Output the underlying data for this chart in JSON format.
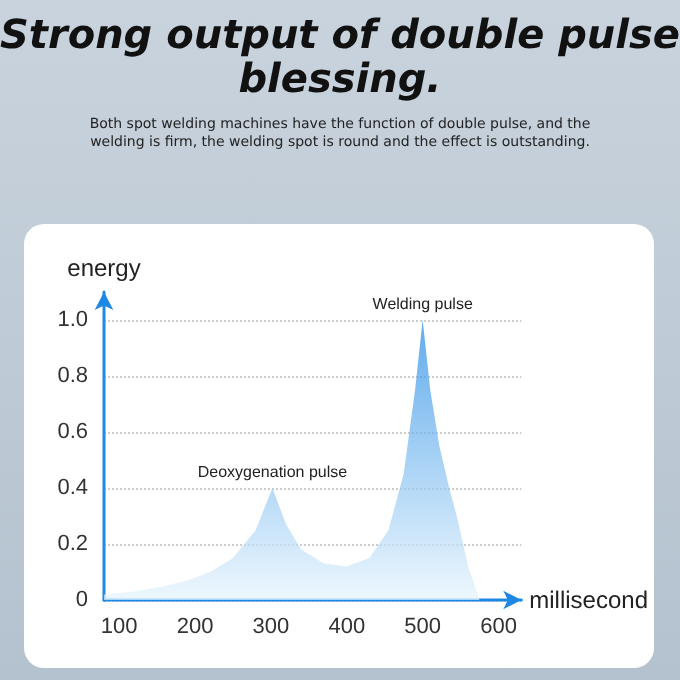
{
  "chart_data": {
    "type": "area",
    "title": "Strong output of double pulse blessing.",
    "subtitle": "Both spot welding machines have the function of double pulse, and the welding is firm, the welding spot is round and the effect is outstanding.",
    "xlabel": "millisecond",
    "ylabel": "energy",
    "x": [
      80,
      120,
      160,
      190,
      220,
      250,
      280,
      302,
      320,
      340,
      370,
      400,
      430,
      455,
      475,
      490,
      500,
      510,
      522,
      535,
      545,
      560,
      575
    ],
    "values": [
      0.02,
      0.03,
      0.05,
      0.07,
      0.1,
      0.15,
      0.25,
      0.4,
      0.27,
      0.18,
      0.13,
      0.12,
      0.15,
      0.25,
      0.45,
      0.75,
      1.0,
      0.75,
      0.55,
      0.4,
      0.3,
      0.12,
      0.0
    ],
    "color": "#1e88e5",
    "xlim": [
      80,
      630
    ],
    "xticks": [
      100,
      200,
      300,
      400,
      500,
      600
    ],
    "ylim": [
      0,
      1.1
    ],
    "yticks": [
      0,
      0.2,
      0.4,
      0.6,
      0.8,
      {
        "value": 1,
        "label": "1.0"
      }
    ],
    "grid": "y",
    "marker": "none",
    "annotations": [
      {
        "text": "Deoxygenation pulse",
        "x": 302,
        "y": 0.4
      },
      {
        "text": "Welding pulse",
        "x": 500,
        "y": 1.0
      }
    ]
  }
}
